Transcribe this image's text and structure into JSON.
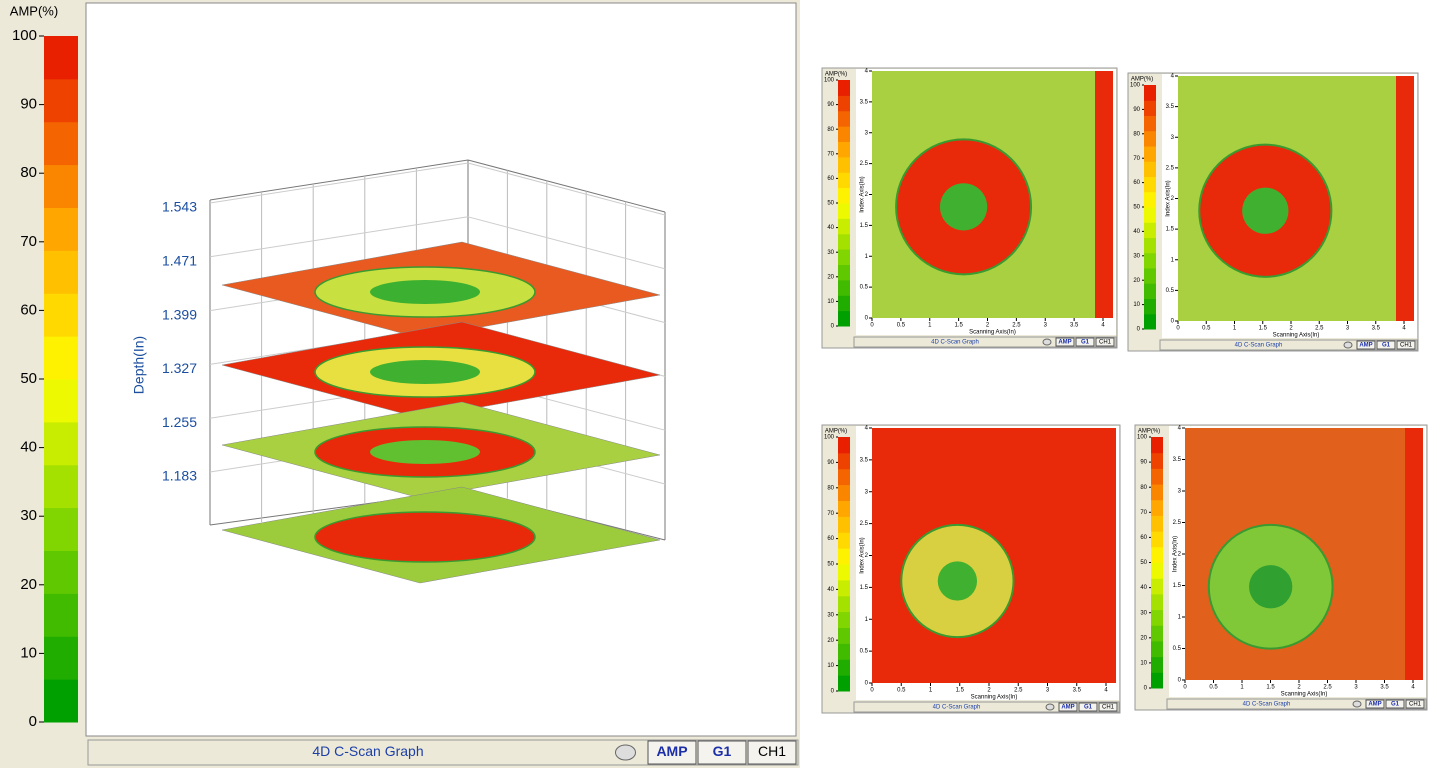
{
  "main": {
    "colorbar": {
      "title": "AMP(%)",
      "ticks": [
        0,
        10,
        20,
        30,
        40,
        50,
        60,
        70,
        80,
        90,
        100
      ]
    },
    "depth_axis": {
      "label": "Depth(In)",
      "ticks": [
        1.183,
        1.255,
        1.327,
        1.399,
        1.471,
        1.543
      ]
    },
    "status": {
      "title": "4D C-Scan Graph",
      "buttons": [
        "AMP",
        "G1",
        "CH1"
      ]
    }
  },
  "thumbnails": [
    {
      "colorbar": {
        "title": "AMP(%)",
        "ticks": [
          0,
          10,
          20,
          30,
          40,
          50,
          60,
          70,
          80,
          90,
          100
        ]
      },
      "y_axis": {
        "label": "Index Axis(In)",
        "ticks": [
          0,
          0.5,
          1,
          1.5,
          2,
          2.5,
          3,
          3.5,
          4
        ]
      },
      "x_axis": {
        "label": "Scanning Axis(In)",
        "ticks": [
          0,
          0.5,
          1,
          1.5,
          2,
          2.5,
          3,
          3.5,
          4
        ]
      },
      "status": {
        "title": "4D C-Scan Graph",
        "buttons": [
          "AMP",
          "G1",
          "CH1"
        ]
      }
    },
    {
      "colorbar": {
        "title": "AMP(%)",
        "ticks": [
          0,
          10,
          20,
          30,
          40,
          50,
          60,
          70,
          80,
          90,
          100
        ]
      },
      "y_axis": {
        "label": "Index Axis(In)",
        "ticks": [
          0,
          0.5,
          1,
          1.5,
          2,
          2.5,
          3,
          3.5,
          4
        ]
      },
      "x_axis": {
        "label": "Scanning Axis(In)",
        "ticks": [
          0,
          0.5,
          1,
          1.5,
          2,
          2.5,
          3,
          3.5,
          4
        ]
      },
      "status": {
        "title": "4D C-Scan Graph",
        "buttons": [
          "AMP",
          "G1",
          "CH1"
        ]
      }
    },
    {
      "colorbar": {
        "title": "AMP(%)",
        "ticks": [
          0,
          10,
          20,
          30,
          40,
          50,
          60,
          70,
          80,
          90,
          100
        ]
      },
      "y_axis": {
        "label": "Index Axis(In)",
        "ticks": [
          0,
          0.5,
          1,
          1.5,
          2,
          2.5,
          3,
          3.5,
          4
        ]
      },
      "x_axis": {
        "label": "Scanning Axis(In)",
        "ticks": [
          0,
          0.5,
          1,
          1.5,
          2,
          2.5,
          3,
          3.5,
          4
        ]
      },
      "status": {
        "title": "4D C-Scan Graph",
        "buttons": [
          "AMP",
          "G1",
          "CH1"
        ]
      }
    },
    {
      "colorbar": {
        "title": "AMP(%)",
        "ticks": [
          0,
          10,
          20,
          30,
          40,
          50,
          60,
          70,
          80,
          90,
          100
        ]
      },
      "y_axis": {
        "label": "Index Axis(In)",
        "ticks": [
          0,
          0.5,
          1,
          1.5,
          2,
          2.5,
          3,
          3.5,
          4
        ]
      },
      "x_axis": {
        "label": "Scanning Axis(In)",
        "ticks": [
          0,
          0.5,
          1,
          1.5,
          2,
          2.5,
          3,
          3.5,
          4
        ]
      },
      "status": {
        "title": "4D C-Scan Graph",
        "buttons": [
          "AMP",
          "G1",
          "CH1"
        ]
      }
    }
  ]
}
